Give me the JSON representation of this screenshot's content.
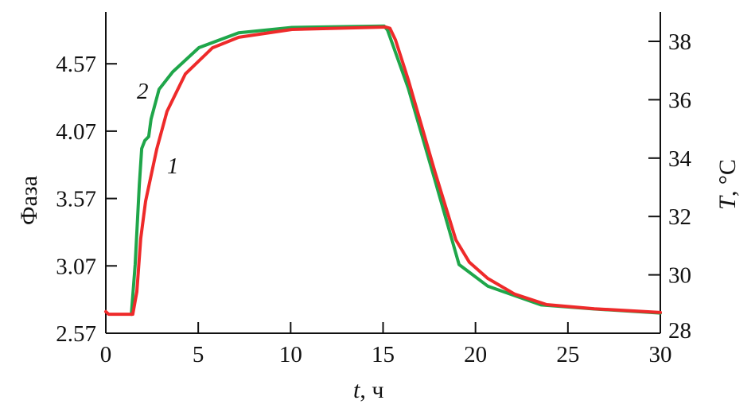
{
  "chart_data": {
    "type": "line",
    "xlabel_var": "t",
    "xlabel_unit": ", ч",
    "ylabel_left": "Фаза",
    "ylabel_right_var": "T",
    "ylabel_right_unit": ", °C",
    "xlim": [
      0,
      30
    ],
    "ylim_left": [
      2.57,
      4.95
    ],
    "ylim_right": [
      28,
      39
    ],
    "x_ticks": [
      "0",
      "5",
      "10",
      "15",
      "20",
      "25",
      "30"
    ],
    "y_left_ticks": [
      "2.57",
      "3.07",
      "3.57",
      "4.07",
      "4.57"
    ],
    "y_right_ticks": [
      "28",
      "30",
      "32",
      "34",
      "36",
      "38"
    ],
    "grid": false,
    "legend": "none",
    "series": [
      {
        "name": "1",
        "color": "#ee2a2a",
        "axis": "right",
        "x": [
          0,
          0.15,
          1.46,
          1.68,
          1.89,
          2.15,
          2.76,
          3.31,
          4.3,
          5.77,
          7.19,
          10.07,
          15.15,
          15.37,
          15.67,
          16.36,
          17.82,
          18.94,
          19.67,
          20.66,
          22.12,
          23.85,
          26.43,
          30
        ],
        "y": [
          28.74,
          28.65,
          28.65,
          29.42,
          31.25,
          32.52,
          34.32,
          35.6,
          36.88,
          37.78,
          38.14,
          38.41,
          38.49,
          38.45,
          38.05,
          36.69,
          33.5,
          31.2,
          30.43,
          29.88,
          29.34,
          28.98,
          28.84,
          28.71
        ]
      },
      {
        "name": "2",
        "color": "#1fa64a",
        "axis": "left",
        "x": [
          1.38,
          1.59,
          1.81,
          1.94,
          2.11,
          2.32,
          2.45,
          2.88,
          3.62,
          5.04,
          7.19,
          10.07,
          15.06,
          15.24,
          16.36,
          17.82,
          19.11,
          20.66,
          23.55,
          26.43,
          30
        ],
        "y": [
          2.71,
          3.08,
          3.67,
          3.94,
          4.0,
          4.03,
          4.16,
          4.38,
          4.51,
          4.69,
          4.8,
          4.84,
          4.85,
          4.82,
          4.39,
          3.7,
          3.08,
          2.92,
          2.78,
          2.75,
          2.72
        ]
      }
    ],
    "annotations": [
      {
        "text": "1",
        "series": "1"
      },
      {
        "text": "2",
        "series": "2"
      }
    ]
  }
}
